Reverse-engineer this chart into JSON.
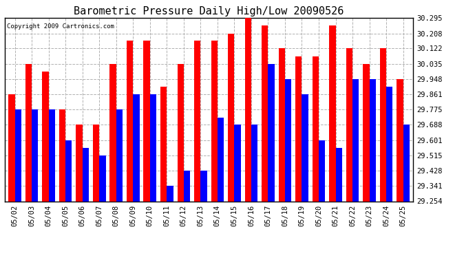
{
  "title": "Barometric Pressure Daily High/Low 20090526",
  "copyright": "Copyright 2009 Cartronics.com",
  "dates": [
    "05/02",
    "05/03",
    "05/04",
    "05/05",
    "05/06",
    "05/07",
    "05/08",
    "05/09",
    "05/10",
    "05/11",
    "05/12",
    "05/13",
    "05/14",
    "05/15",
    "05/16",
    "05/17",
    "05/18",
    "05/19",
    "05/20",
    "05/21",
    "05/22",
    "05/23",
    "05/24",
    "05/25"
  ],
  "highs": [
    29.861,
    30.035,
    29.99,
    29.775,
    29.688,
    29.688,
    30.035,
    30.165,
    30.165,
    29.905,
    30.035,
    30.165,
    30.165,
    30.208,
    30.295,
    30.252,
    30.122,
    30.078,
    30.078,
    30.252,
    30.122,
    30.035,
    30.122,
    29.948
  ],
  "lows": [
    29.775,
    29.775,
    29.775,
    29.601,
    29.558,
    29.515,
    29.775,
    29.861,
    29.861,
    29.341,
    29.428,
    29.428,
    29.731,
    29.688,
    29.688,
    30.035,
    29.948,
    29.862,
    29.601,
    29.558,
    29.948,
    29.948,
    29.905,
    29.688
  ],
  "ymin": 29.254,
  "ymax": 30.295,
  "yticks": [
    29.254,
    29.341,
    29.428,
    29.515,
    29.601,
    29.688,
    29.775,
    29.861,
    29.948,
    30.035,
    30.122,
    30.208,
    30.295
  ],
  "bar_width": 0.38,
  "high_color": "#ff0000",
  "low_color": "#0000ff",
  "bg_color": "#ffffff",
  "grid_color": "#b0b0b0",
  "title_fontsize": 11,
  "tick_fontsize": 7.5,
  "copyright_fontsize": 6.5
}
